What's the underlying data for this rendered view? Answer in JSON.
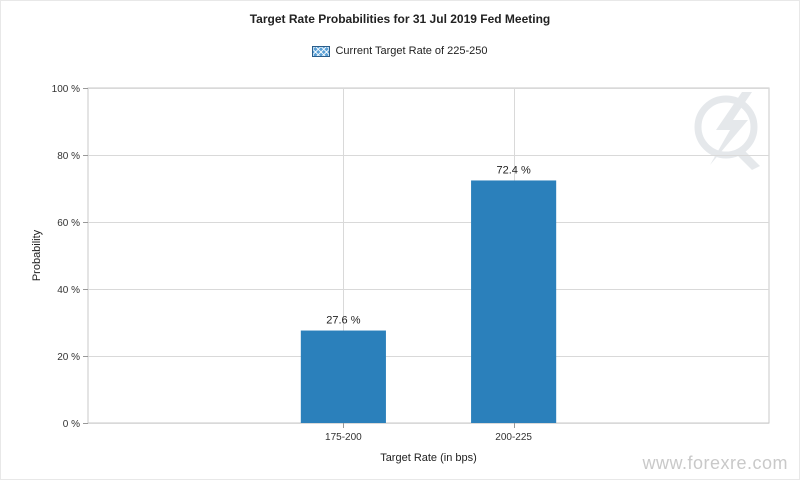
{
  "chart_data": {
    "type": "bar",
    "title": "Target Rate Probabilities for 31 Jul 2019 Fed Meeting",
    "xlabel": "Target Rate (in bps)",
    "ylabel": "Probability",
    "categories": [
      "175-200",
      "200-225"
    ],
    "series": [
      {
        "name": "Current Target Rate of 225-250",
        "values": [
          27.6,
          72.4
        ]
      }
    ],
    "data_labels": [
      "27.6 %",
      "72.4 %"
    ],
    "ylim": [
      0,
      100
    ],
    "yticks": [
      0,
      20,
      40,
      60,
      80,
      100
    ],
    "ytick_labels": [
      "0 %",
      "20 %",
      "40 %",
      "60 %",
      "80 %",
      "100 %"
    ],
    "grid": true,
    "legend_position": "top-center",
    "bar_color": "#2b80bb"
  },
  "watermark": "www.forexre.com"
}
